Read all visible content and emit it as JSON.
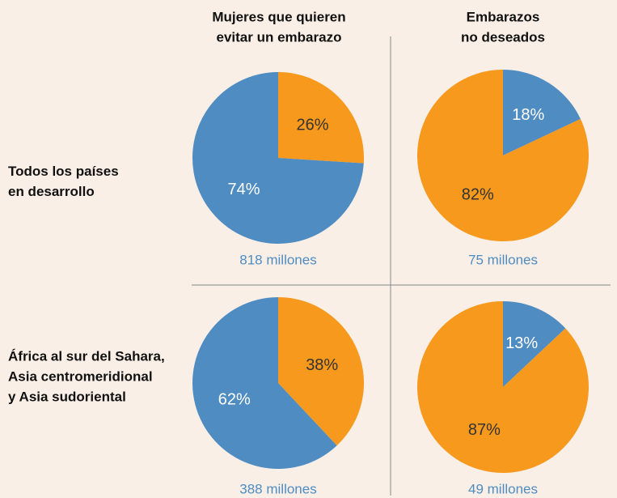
{
  "column_titles": [
    [
      "Mujeres que quieren",
      "evitar un embarazo"
    ],
    [
      "Embarazos",
      "no deseados"
    ]
  ],
  "row_titles": [
    [
      "Todos los países",
      "en desarrollo"
    ],
    [
      "África al sur del Sahara,",
      "Asia centromeridional",
      "y Asia sudoriental"
    ]
  ],
  "chart_data": [
    {
      "type": "pie",
      "values": [
        26,
        74
      ],
      "value_labels": [
        "26%",
        "74%"
      ],
      "colors": [
        "#f7991d",
        "#4f8cc2"
      ],
      "label_colors": [
        "#333333",
        "#ffffff"
      ],
      "caption": "818 millones"
    },
    {
      "type": "pie",
      "values": [
        18,
        82
      ],
      "value_labels": [
        "18%",
        "82%"
      ],
      "colors": [
        "#4f8cc2",
        "#f7991d"
      ],
      "label_colors": [
        "#ffffff",
        "#333333"
      ],
      "caption": "75 millones"
    },
    {
      "type": "pie",
      "values": [
        38,
        62
      ],
      "value_labels": [
        "38%",
        "62%"
      ],
      "colors": [
        "#f7991d",
        "#4f8cc2"
      ],
      "label_colors": [
        "#333333",
        "#ffffff"
      ],
      "caption": "388 millones"
    },
    {
      "type": "pie",
      "values": [
        13,
        87
      ],
      "value_labels": [
        "13%",
        "87%"
      ],
      "colors": [
        "#4f8cc2",
        "#f7991d"
      ],
      "label_colors": [
        "#ffffff",
        "#333333"
      ],
      "caption": "49 millones"
    }
  ]
}
